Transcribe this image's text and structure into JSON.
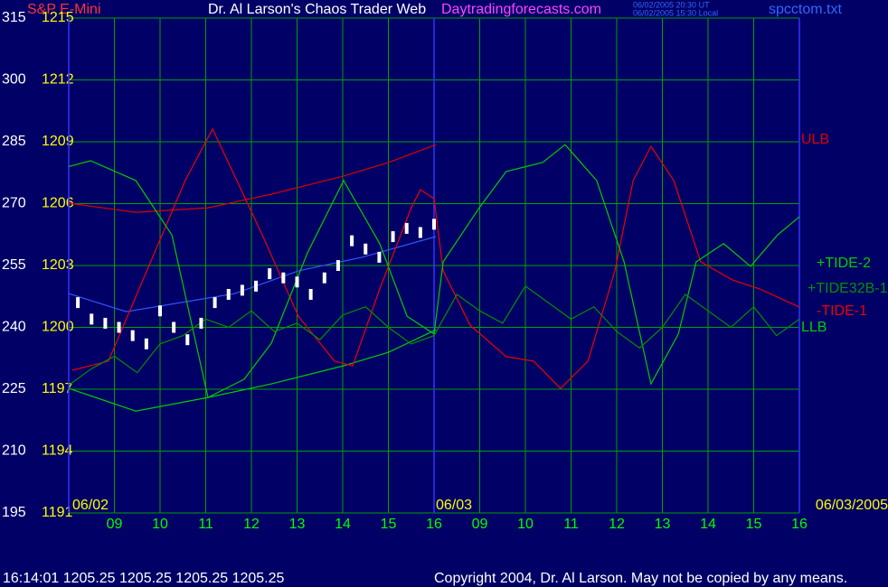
{
  "header": {
    "instrument": "S&P E-Mini",
    "title": "Dr. Al Larson's Chaos Trader Web",
    "site": "Daytradingforecasts.com",
    "stamp_ut": "06/02/2005 20:30 UT",
    "stamp_local": "06/02/2005 15:30 Local",
    "file": "spcctom.txt"
  },
  "footer": {
    "quote": "16:14:01  1205.25 1205.25 1205.25 1205.25",
    "copyright": "Copyright 2004, Dr. Al Larson. May not be copied by any means."
  },
  "chart_data": {
    "type": "line",
    "dates": [
      "06/02",
      "06/03",
      "06/03/2005"
    ],
    "xlim": [
      0,
      16
    ],
    "xticks": [
      {
        "value": 1,
        "label": "09"
      },
      {
        "value": 2,
        "label": "10"
      },
      {
        "value": 3,
        "label": "11"
      },
      {
        "value": 4,
        "label": "12"
      },
      {
        "value": 5,
        "label": "13"
      },
      {
        "value": 6,
        "label": "14"
      },
      {
        "value": 7,
        "label": "15"
      },
      {
        "value": 8,
        "label": "16"
      },
      {
        "value": 9,
        "label": "09"
      },
      {
        "value": 10,
        "label": "10"
      },
      {
        "value": 11,
        "label": "11"
      },
      {
        "value": 12,
        "label": "12"
      },
      {
        "value": 13,
        "label": "13"
      },
      {
        "value": 14,
        "label": "14"
      },
      {
        "value": 15,
        "label": "15"
      },
      {
        "value": 16,
        "label": "16"
      }
    ],
    "ylim": [
      195,
      315
    ],
    "yticks": [
      315,
      300,
      285,
      270,
      255,
      240,
      225,
      210,
      195
    ],
    "y2lim": [
      1191,
      1215
    ],
    "y2ticks": [
      1215,
      1212,
      1209,
      1206,
      1203,
      1200,
      1197,
      1194,
      1191
    ],
    "grid": true,
    "series": [
      {
        "name": "ULB",
        "color": "#dd0000",
        "x": [
          0,
          1.47,
          3.05,
          4.44,
          6.02,
          7.01,
          8.04
        ],
        "values": [
          270.1,
          267.9,
          269,
          272.3,
          276.7,
          280,
          284.3
        ]
      },
      {
        "name": "LLB",
        "color": "#00cc00",
        "x": [
          0,
          1.47,
          3.05,
          4.44,
          6.02,
          7.01,
          8.04
        ],
        "values": [
          225.2,
          219.7,
          223,
          226.3,
          230.7,
          234,
          239.4
        ]
      },
      {
        "color": "#3355ff",
        "x": [
          0,
          1.26,
          3.64,
          5.03,
          6.42,
          8.04
        ],
        "values": [
          248.2,
          243.8,
          248.2,
          253.7,
          257,
          262
        ]
      },
      {
        "name": "-TIDE-1",
        "color": "#ee0000",
        "x": [
          0.08,
          0.87,
          2.55,
          3.15,
          4.24,
          5.03,
          5.82,
          6.22,
          6.81,
          7.5,
          7.7,
          8.0,
          8.2,
          8.79,
          9.58,
          10.18,
          10.77,
          11.37,
          11.96,
          12.36,
          12.75,
          13.25,
          13.84,
          14.53,
          15.13,
          16
        ],
        "values": [
          229.6,
          231.8,
          275.6,
          288.1,
          262.4,
          242.7,
          231.8,
          230.7,
          249.3,
          269,
          273.4,
          271.2,
          253.7,
          240.5,
          232.9,
          231.8,
          225.2,
          231.8,
          253.7,
          275.6,
          283.9,
          275.6,
          255.9,
          251.5,
          249.3,
          244.9
        ]
      },
      {
        "name": "+TIDE-2",
        "color": "#00cc00",
        "x": [
          0,
          0.48,
          1.47,
          2.26,
          3.05,
          3.84,
          4.44,
          5.23,
          6.02,
          6.81,
          7.41,
          8.0,
          8.2,
          8.99,
          9.58,
          10.38,
          10.87,
          11.56,
          12.16,
          12.75,
          13.35,
          13.74,
          14.34,
          14.93,
          15.52,
          16
        ],
        "values": [
          279,
          280.4,
          275.6,
          262.4,
          223,
          227.4,
          236.2,
          258.1,
          275.6,
          260.3,
          242.7,
          238.4,
          255.9,
          269,
          277.8,
          280,
          284.3,
          275.6,
          255.9,
          226.3,
          238.4,
          255.9,
          260.3,
          254.8,
          262.4,
          266.8
        ]
      },
      {
        "name": "+TIDE32B-1",
        "color": "#009000",
        "x": [
          0,
          0.5,
          1,
          1.5,
          2,
          2.5,
          3,
          3.5,
          4,
          4.5,
          5,
          5.5,
          6,
          6.5,
          7,
          7.5,
          8,
          8.5,
          9,
          9.5,
          10,
          10.5,
          11,
          11.5,
          12,
          12.5,
          13,
          13.5,
          14,
          14.5,
          15,
          15.5,
          16
        ],
        "values": [
          226,
          230,
          233,
          229,
          236,
          238,
          242,
          240,
          244,
          239,
          241,
          237,
          243,
          245,
          240,
          236,
          238,
          248,
          244,
          241,
          250,
          246,
          242,
          245,
          239,
          235,
          240,
          248,
          244,
          240,
          245,
          238,
          242
        ]
      },
      {
        "name": "S&P E-Mini",
        "color": "#ffffff",
        "x": [
          0.2,
          0.5,
          0.8,
          1.1,
          1.4,
          1.7,
          2.0,
          2.3,
          2.6,
          2.9,
          3.2,
          3.5,
          3.8,
          4.1,
          4.4,
          4.7,
          5.0,
          5.3,
          5.6,
          5.9,
          6.2,
          6.5,
          6.8,
          7.1,
          7.4,
          7.7,
          8.0
        ],
        "values": [
          246,
          242,
          241,
          240,
          238,
          236,
          244,
          240,
          237,
          241,
          246,
          248,
          249,
          250,
          253,
          252,
          251,
          248,
          252,
          255,
          261,
          259,
          257,
          262,
          264,
          263,
          265
        ]
      }
    ]
  }
}
